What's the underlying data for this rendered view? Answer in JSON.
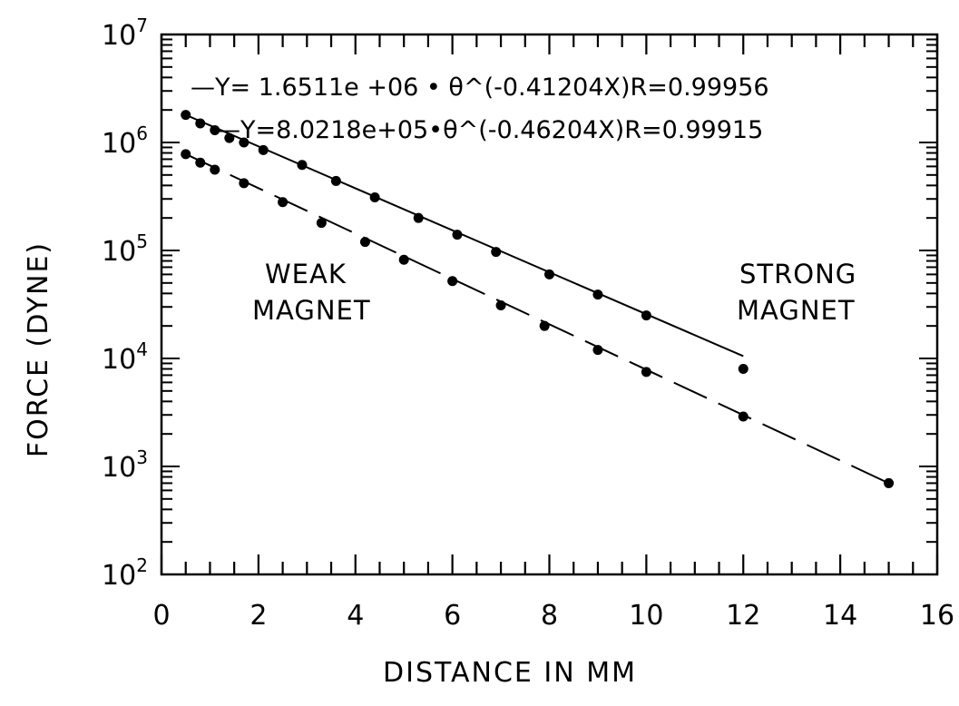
{
  "chart_data": {
    "type": "scatter",
    "xlabel": "DISTANCE IN MM",
    "ylabel": "FORCE (DYNE)",
    "xlim": [
      0,
      16
    ],
    "ylim": [
      100,
      10000000
    ],
    "yscale": "log",
    "grid": false,
    "x_ticks": [
      "0",
      "2",
      "4",
      "6",
      "8",
      "10",
      "12",
      "14",
      "16"
    ],
    "y_ticks": [
      {
        "base": "10",
        "exp": "2"
      },
      {
        "base": "10",
        "exp": "3"
      },
      {
        "base": "10",
        "exp": "4"
      },
      {
        "base": "10",
        "exp": "5"
      },
      {
        "base": "10",
        "exp": "6"
      },
      {
        "base": "10",
        "exp": "7"
      }
    ],
    "annotations": {
      "weak_line1": "WEAK",
      "weak_line2": "MAGNET",
      "strong_line1": "STRONG",
      "strong_line2": "MAGNET"
    },
    "series": [
      {
        "style": "solid",
        "equation": "—Y= 1.6511e +06 • θ^(-0.41204X)R=0.99956",
        "points": [
          {
            "x": 0.5,
            "y": 1800000
          },
          {
            "x": 0.8,
            "y": 1500000
          },
          {
            "x": 1.1,
            "y": 1300000
          },
          {
            "x": 1.4,
            "y": 1100000
          },
          {
            "x": 1.7,
            "y": 1000000
          },
          {
            "x": 2.1,
            "y": 850000
          },
          {
            "x": 2.9,
            "y": 620000
          },
          {
            "x": 3.6,
            "y": 440000
          },
          {
            "x": 4.4,
            "y": 310000
          },
          {
            "x": 5.3,
            "y": 200000
          },
          {
            "x": 6.1,
            "y": 140000
          },
          {
            "x": 6.9,
            "y": 97000
          },
          {
            "x": 8.0,
            "y": 60000
          },
          {
            "x": 9.0,
            "y": 39000
          },
          {
            "x": 10.0,
            "y": 25000
          },
          {
            "x": 12.0,
            "y": 8000
          }
        ],
        "fit": {
          "x": [
            0.5,
            12.0
          ],
          "y": [
            1800000,
            10500
          ]
        }
      },
      {
        "style": "dashed",
        "equation": "—Y=8.0218e+05•θ^(-0.46204X)R=0.99915",
        "points": [
          {
            "x": 0.5,
            "y": 780000
          },
          {
            "x": 0.8,
            "y": 650000
          },
          {
            "x": 1.1,
            "y": 560000
          },
          {
            "x": 1.7,
            "y": 420000
          },
          {
            "x": 2.5,
            "y": 280000
          },
          {
            "x": 3.3,
            "y": 180000
          },
          {
            "x": 4.2,
            "y": 120000
          },
          {
            "x": 5.0,
            "y": 82000
          },
          {
            "x": 6.0,
            "y": 52000
          },
          {
            "x": 7.0,
            "y": 31000
          },
          {
            "x": 7.9,
            "y": 20000
          },
          {
            "x": 9.0,
            "y": 12000
          },
          {
            "x": 10.0,
            "y": 7500
          },
          {
            "x": 12.0,
            "y": 2900
          },
          {
            "x": 15.0,
            "y": 700
          }
        ],
        "fit": {
          "x": [
            0.5,
            15.0
          ],
          "y": [
            780000,
            700
          ]
        }
      }
    ]
  }
}
